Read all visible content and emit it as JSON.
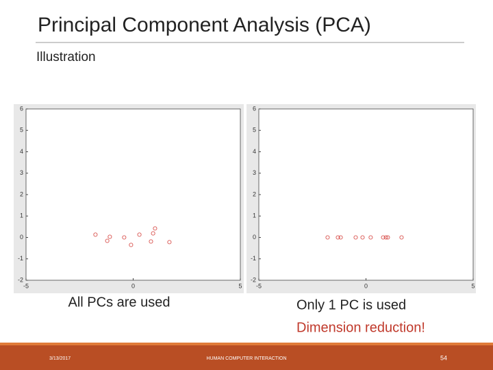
{
  "slide": {
    "title": "Principal Component Analysis (PCA)",
    "subtitle": "Illustration",
    "captions": [
      "All PCs are used",
      "Only 1 PC is used",
      "Dimension reduction!"
    ],
    "footer": {
      "date": "3/13/2017",
      "center": "HUMAN COMPUTER INTERACTION",
      "page": "54"
    }
  },
  "chart_data": [
    {
      "type": "scatter",
      "color": "#d9534f",
      "x": [
        -1.76,
        -1.09,
        -1.21,
        -0.42,
        -0.1,
        0.29,
        0.83,
        0.93,
        1.02,
        1.69
      ],
      "values": [
        0.13,
        0.03,
        -0.16,
        0,
        -0.35,
        0.13,
        -0.19,
        0.19,
        0.42,
        -0.22
      ],
      "xlim": [
        -5,
        5
      ],
      "ylim": [
        -2,
        6
      ],
      "xticks": [
        -5,
        0,
        5
      ],
      "yticks": [
        -2,
        -1,
        0,
        1,
        2,
        3,
        4,
        5,
        6
      ]
    },
    {
      "type": "scatter",
      "color": "#d9534f",
      "x": [
        -1.79,
        -1.31,
        -1.18,
        -0.48,
        -0.16,
        0.22,
        0.8,
        0.93,
        1.02,
        1.66
      ],
      "values": [
        0,
        0,
        0,
        0,
        0,
        0,
        0,
        0,
        0,
        0
      ],
      "xlim": [
        -5,
        5
      ],
      "ylim": [
        -2,
        6
      ],
      "xticks": [
        -5,
        0,
        5
      ],
      "yticks": [
        -2,
        -1,
        0,
        1,
        2,
        3,
        4,
        5,
        6
      ]
    }
  ]
}
